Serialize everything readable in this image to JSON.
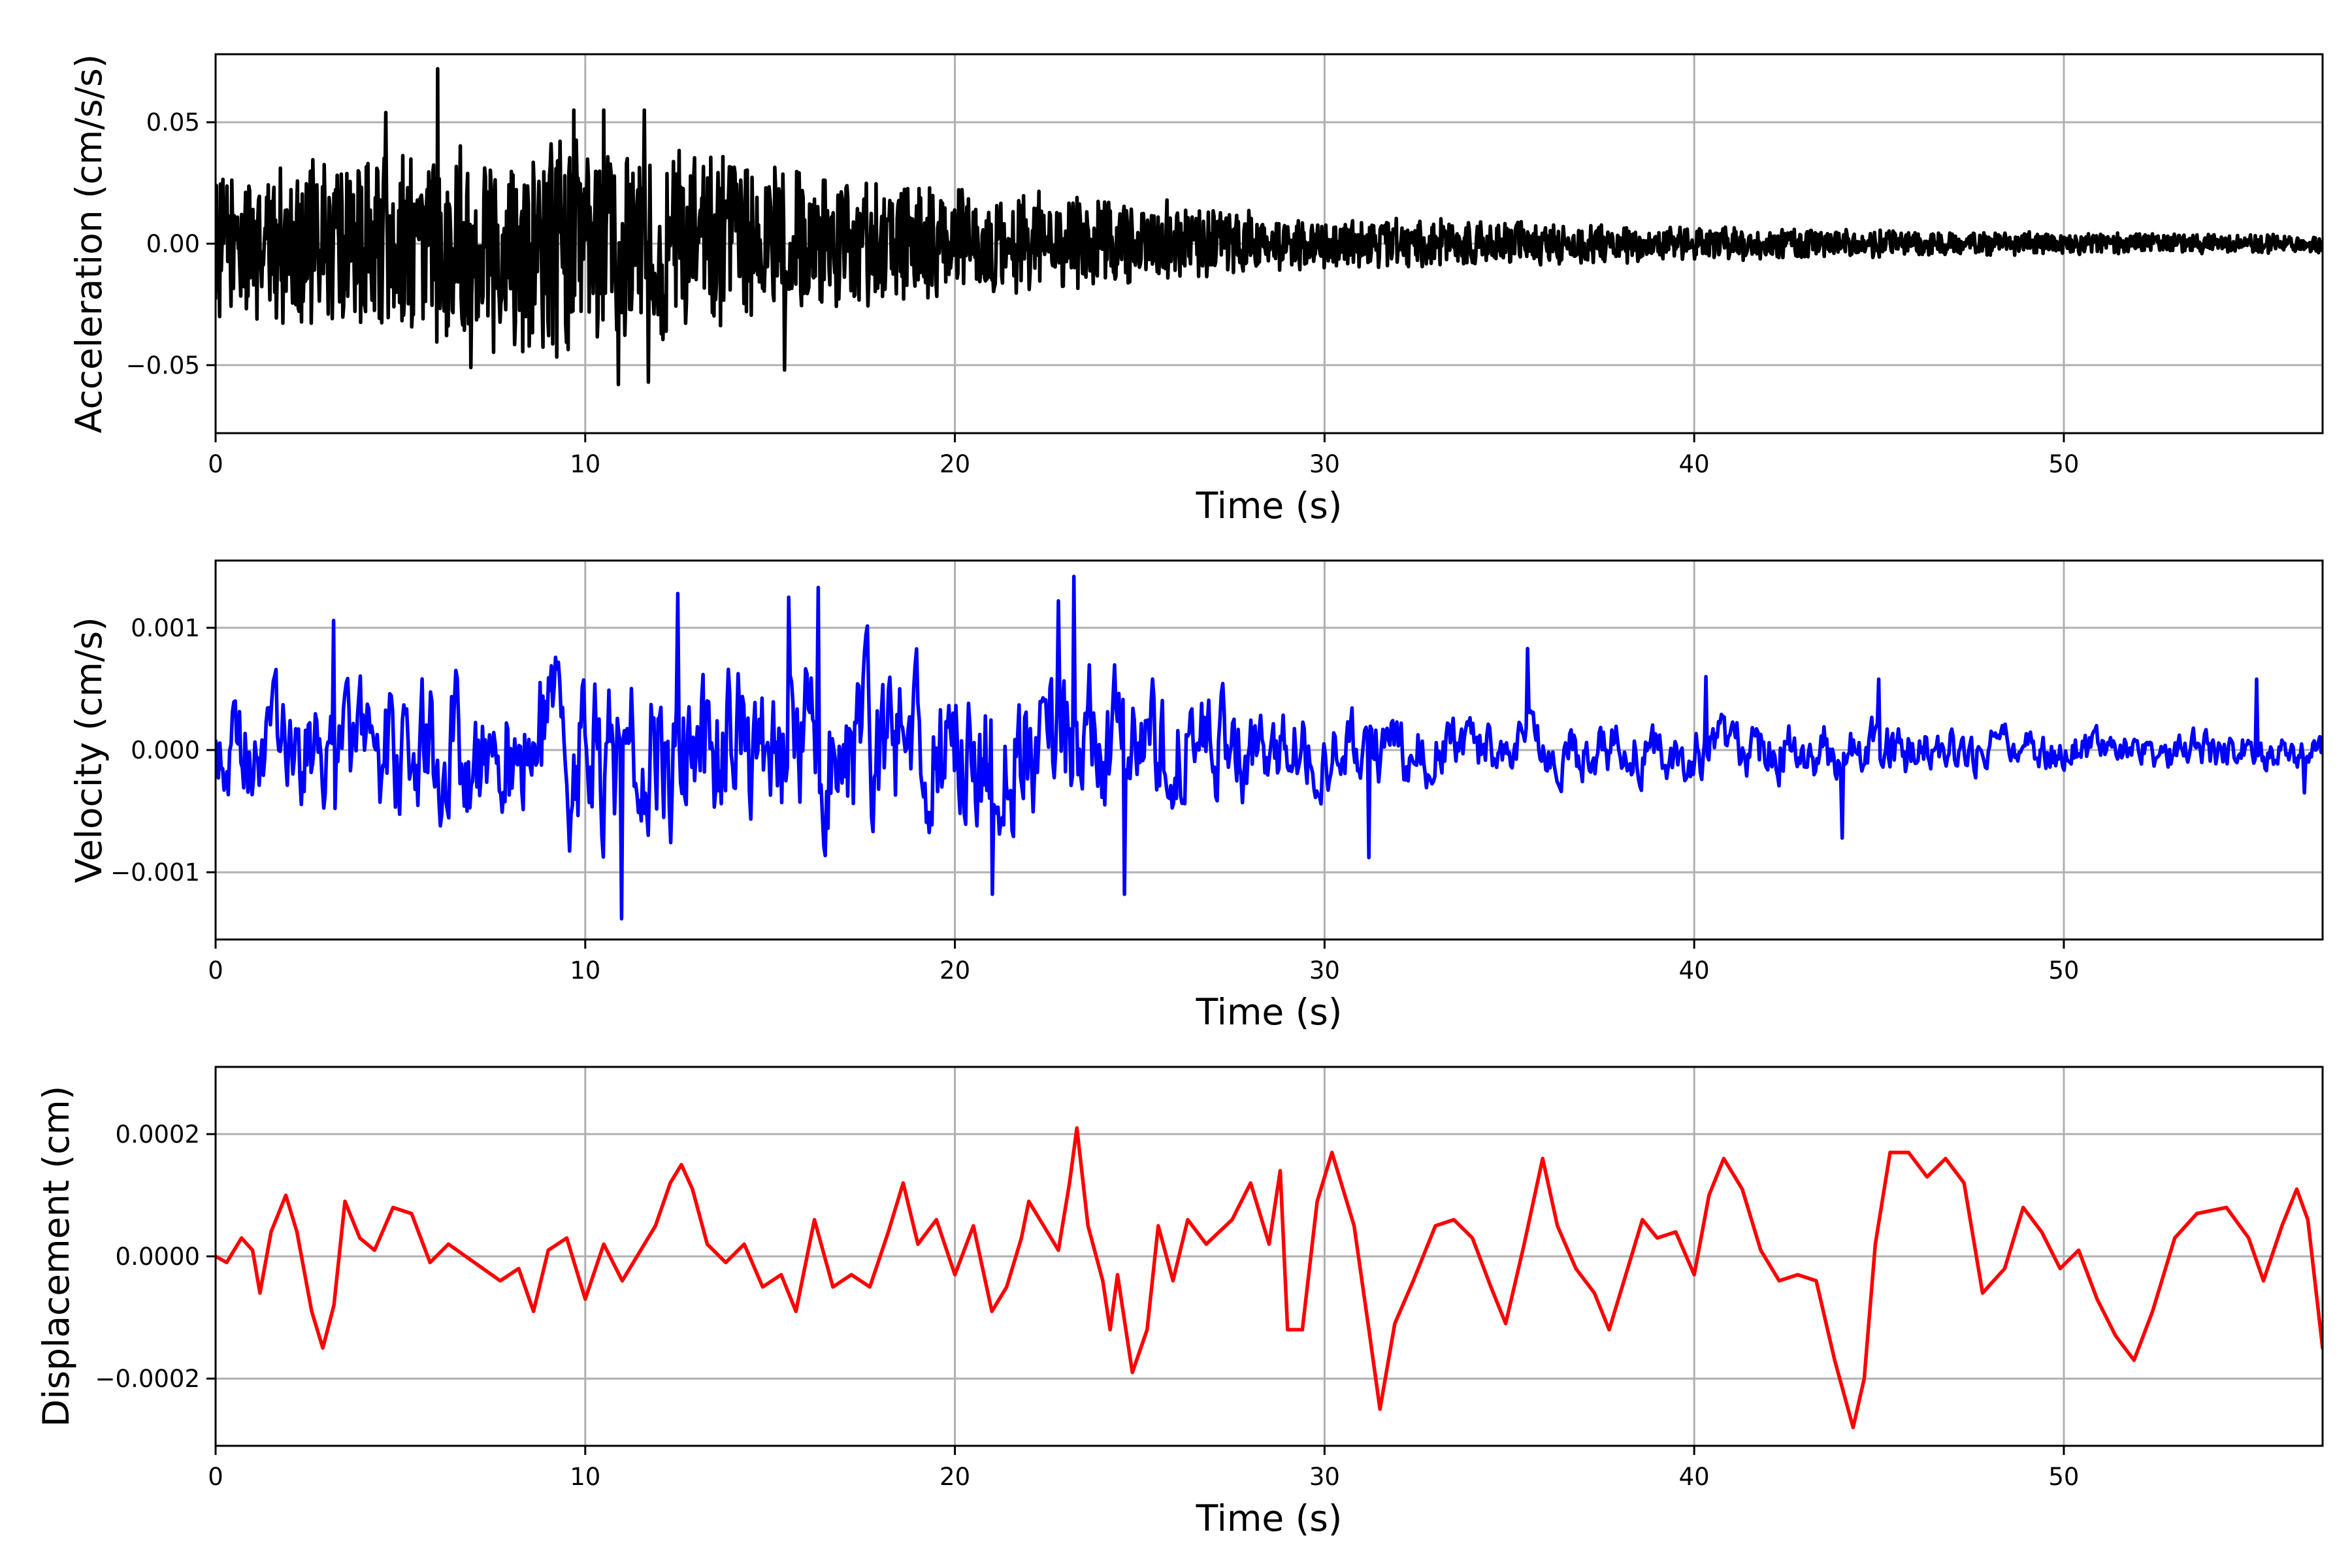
{
  "chart_data": [
    {
      "type": "line",
      "xlabel": "Time (s)",
      "ylabel": "Acceleration (cm/s/s)",
      "xlim": [
        0,
        57
      ],
      "ylim": [
        -0.078,
        0.078
      ],
      "x_ticks": [
        0,
        10,
        20,
        30,
        40,
        50
      ],
      "x_tick_labels": [
        "0",
        "10",
        "20",
        "30",
        "40",
        "50"
      ],
      "y_ticks": [
        -0.05,
        0.0,
        0.05
      ],
      "y_tick_labels": [
        "−0.05",
        "0.00",
        "0.05"
      ],
      "grid": true,
      "series": [
        {
          "color": "#000000",
          "envelope": [
            [
              0,
              0.03
            ],
            [
              5,
              0.045
            ],
            [
              10,
              0.05
            ],
            [
              12,
              0.045
            ],
            [
              15,
              0.035
            ],
            [
              20,
              0.025
            ],
            [
              25,
              0.02
            ],
            [
              30,
              0.012
            ],
            [
              35,
              0.01
            ],
            [
              40,
              0.008
            ],
            [
              45,
              0.006
            ],
            [
              50,
              0.005
            ],
            [
              57,
              0.004
            ]
          ],
          "peaks": [
            [
              6.0,
              0.072
            ],
            [
              4.6,
              0.054
            ],
            [
              9.7,
              0.055
            ],
            [
              10.5,
              0.055
            ],
            [
              11.6,
              0.055
            ],
            [
              10.9,
              -0.058
            ],
            [
              11.7,
              -0.057
            ],
            [
              15.4,
              -0.052
            ],
            [
              6.9,
              -0.051
            ],
            [
              0.1,
              -0.03
            ]
          ]
        }
      ]
    },
    {
      "type": "line",
      "xlabel": "Time (s)",
      "ylabel": "Velocity (cm/s)",
      "xlim": [
        0,
        57
      ],
      "ylim": [
        -0.00155,
        0.00155
      ],
      "x_ticks": [
        0,
        10,
        20,
        30,
        40,
        50
      ],
      "x_tick_labels": [
        "0",
        "10",
        "20",
        "30",
        "40",
        "50"
      ],
      "y_ticks": [
        -0.001,
        0.0,
        0.001
      ],
      "y_tick_labels": [
        "−0.001",
        "0.000",
        "0.001"
      ],
      "grid": true,
      "series": [
        {
          "color": "#0000ff",
          "envelope": [
            [
              0,
              0.0005
            ],
            [
              5,
              0.0007
            ],
            [
              10,
              0.0009
            ],
            [
              15,
              0.0009
            ],
            [
              20,
              0.0008
            ],
            [
              23,
              0.0009
            ],
            [
              25,
              0.0007
            ],
            [
              30,
              0.0004
            ],
            [
              35,
              0.0003
            ],
            [
              40,
              0.0003
            ],
            [
              45,
              0.0003
            ],
            [
              50,
              0.0002
            ],
            [
              57,
              0.0002
            ]
          ],
          "peaks": [
            [
              23.2,
              0.00142
            ],
            [
              16.3,
              0.00133
            ],
            [
              12.5,
              0.00128
            ],
            [
              15.5,
              0.00125
            ],
            [
              22.8,
              0.00122
            ],
            [
              3.2,
              0.00106
            ],
            [
              11.0,
              -0.00138
            ],
            [
              21.0,
              -0.00118
            ],
            [
              24.6,
              -0.00118
            ],
            [
              31.2,
              -0.00088
            ],
            [
              44.0,
              -0.00072
            ],
            [
              35.5,
              0.00083
            ],
            [
              40.3,
              0.0006
            ],
            [
              45.0,
              0.00058
            ],
            [
              55.2,
              0.00058
            ],
            [
              56.5,
              -0.00035
            ]
          ]
        }
      ]
    },
    {
      "type": "line",
      "xlabel": "Time (s)",
      "ylabel": "Displacement (cm)",
      "xlim": [
        0,
        57
      ],
      "ylim": [
        -0.00031,
        0.00031
      ],
      "x_ticks": [
        0,
        10,
        20,
        30,
        40,
        50
      ],
      "x_tick_labels": [
        "0",
        "10",
        "20",
        "30",
        "40",
        "50"
      ],
      "y_ticks": [
        -0.0002,
        0.0,
        0.0002
      ],
      "y_tick_labels": [
        "−0.0002",
        "0.0000",
        "0.0002"
      ],
      "grid": true,
      "series": [
        {
          "color": "#ff0000",
          "points": [
            [
              0,
              0
            ],
            [
              0.3,
              -1e-05
            ],
            [
              0.7,
              3e-05
            ],
            [
              1.0,
              1e-05
            ],
            [
              1.2,
              -6e-05
            ],
            [
              1.5,
              4e-05
            ],
            [
              1.9,
              0.0001
            ],
            [
              2.2,
              4e-05
            ],
            [
              2.6,
              -9e-05
            ],
            [
              2.9,
              -0.00015
            ],
            [
              3.2,
              -8e-05
            ],
            [
              3.5,
              9e-05
            ],
            [
              3.9,
              3e-05
            ],
            [
              4.3,
              1e-05
            ],
            [
              4.8,
              8e-05
            ],
            [
              5.3,
              7e-05
            ],
            [
              5.8,
              -1e-05
            ],
            [
              6.3,
              2e-05
            ],
            [
              7.0,
              -1e-05
            ],
            [
              7.7,
              -4e-05
            ],
            [
              8.2,
              -2e-05
            ],
            [
              8.6,
              -9e-05
            ],
            [
              9.0,
              1e-05
            ],
            [
              9.5,
              3e-05
            ],
            [
              10.0,
              -7e-05
            ],
            [
              10.5,
              2e-05
            ],
            [
              11.0,
              -4e-05
            ],
            [
              11.5,
              1e-05
            ],
            [
              11.9,
              5e-05
            ],
            [
              12.3,
              0.00012
            ],
            [
              12.6,
              0.00015
            ],
            [
              12.9,
              0.00011
            ],
            [
              13.3,
              2e-05
            ],
            [
              13.8,
              -1e-05
            ],
            [
              14.3,
              2e-05
            ],
            [
              14.8,
              -5e-05
            ],
            [
              15.3,
              -3e-05
            ],
            [
              15.7,
              -9e-05
            ],
            [
              16.2,
              6e-05
            ],
            [
              16.7,
              -5e-05
            ],
            [
              17.2,
              -3e-05
            ],
            [
              17.7,
              -5e-05
            ],
            [
              18.2,
              4e-05
            ],
            [
              18.6,
              0.00012
            ],
            [
              19.0,
              2e-05
            ],
            [
              19.5,
              6e-05
            ],
            [
              20.0,
              -3e-05
            ],
            [
              20.5,
              5e-05
            ],
            [
              21.0,
              -9e-05
            ],
            [
              21.4,
              -5e-05
            ],
            [
              21.8,
              3e-05
            ],
            [
              22.0,
              9e-05
            ],
            [
              22.4,
              5e-05
            ],
            [
              22.8,
              1e-05
            ],
            [
              23.1,
              0.00012
            ],
            [
              23.3,
              0.00021
            ],
            [
              23.6,
              5e-05
            ],
            [
              24.0,
              -4e-05
            ],
            [
              24.2,
              -0.00012
            ],
            [
              24.4,
              -3e-05
            ],
            [
              24.8,
              -0.00019
            ],
            [
              25.2,
              -0.00012
            ],
            [
              25.5,
              5e-05
            ],
            [
              25.9,
              -4e-05
            ],
            [
              26.3,
              6e-05
            ],
            [
              26.8,
              2e-05
            ],
            [
              27.5,
              6e-05
            ],
            [
              28.0,
              0.00012
            ],
            [
              28.5,
              2e-05
            ],
            [
              28.8,
              0.00014
            ],
            [
              29.0,
              -0.00012
            ],
            [
              29.4,
              -0.00012
            ],
            [
              29.8,
              9e-05
            ],
            [
              30.2,
              0.00017
            ],
            [
              30.8,
              5e-05
            ],
            [
              31.2,
              -0.00012
            ],
            [
              31.5,
              -0.00025
            ],
            [
              31.9,
              -0.00011
            ],
            [
              32.4,
              -4e-05
            ],
            [
              33.0,
              5e-05
            ],
            [
              33.5,
              6e-05
            ],
            [
              34.0,
              3e-05
            ],
            [
              34.5,
              -5e-05
            ],
            [
              34.9,
              -0.00011
            ],
            [
              35.4,
              2e-05
            ],
            [
              35.9,
              0.00016
            ],
            [
              36.3,
              5e-05
            ],
            [
              36.8,
              -2e-05
            ],
            [
              37.3,
              -6e-05
            ],
            [
              37.7,
              -0.00012
            ],
            [
              38.1,
              -4e-05
            ],
            [
              38.6,
              6e-05
            ],
            [
              39.0,
              3e-05
            ],
            [
              39.5,
              4e-05
            ],
            [
              40.0,
              -3e-05
            ],
            [
              40.4,
              0.0001
            ],
            [
              40.8,
              0.00016
            ],
            [
              41.3,
              0.00011
            ],
            [
              41.8,
              1e-05
            ],
            [
              42.3,
              -4e-05
            ],
            [
              42.8,
              -3e-05
            ],
            [
              43.3,
              -4e-05
            ],
            [
              43.8,
              -0.00017
            ],
            [
              44.3,
              -0.00028
            ],
            [
              44.6,
              -0.0002
            ],
            [
              44.9,
              2e-05
            ],
            [
              45.3,
              0.00017
            ],
            [
              45.8,
              0.00017
            ],
            [
              46.3,
              0.00013
            ],
            [
              46.8,
              0.00016
            ],
            [
              47.3,
              0.00012
            ],
            [
              47.8,
              -6e-05
            ],
            [
              48.4,
              -2e-05
            ],
            [
              48.9,
              8e-05
            ],
            [
              49.4,
              4e-05
            ],
            [
              49.9,
              -2e-05
            ],
            [
              50.4,
              1e-05
            ],
            [
              50.9,
              -7e-05
            ],
            [
              51.4,
              -0.00013
            ],
            [
              51.9,
              -0.00017
            ],
            [
              52.4,
              -9e-05
            ],
            [
              53.0,
              3e-05
            ],
            [
              53.6,
              7e-05
            ],
            [
              54.4,
              8e-05
            ],
            [
              55.0,
              3e-05
            ],
            [
              55.4,
              -4e-05
            ],
            [
              55.9,
              5e-05
            ],
            [
              56.3,
              0.00011
            ],
            [
              56.6,
              6e-05
            ],
            [
              57.0,
              -0.00015
            ]
          ]
        }
      ]
    }
  ]
}
